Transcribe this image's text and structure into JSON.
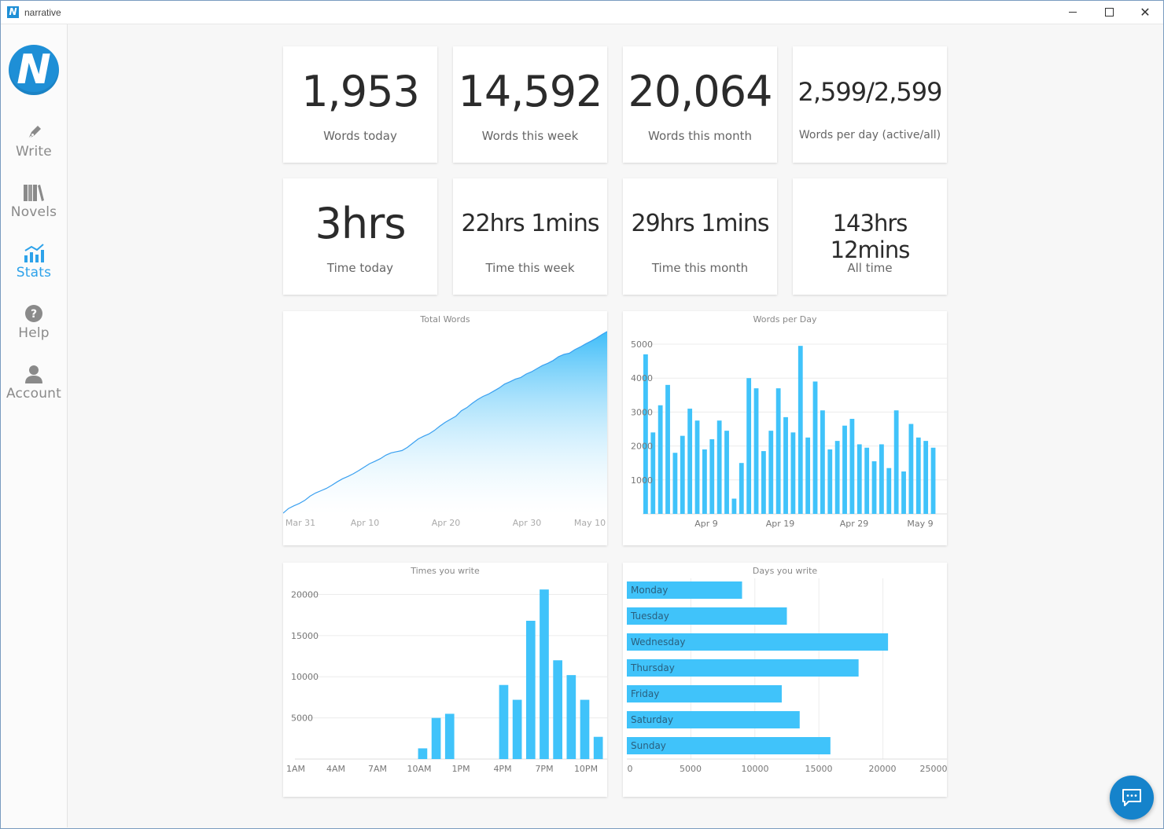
{
  "window": {
    "title": "narrative",
    "app_icon_letter": "N"
  },
  "sidebar": {
    "logo_letter": "N",
    "items": [
      {
        "label": "Write",
        "icon": "pen-icon",
        "active": false
      },
      {
        "label": "Novels",
        "icon": "books-icon",
        "active": false
      },
      {
        "label": "Stats",
        "icon": "chart-icon",
        "active": true
      },
      {
        "label": "Help",
        "icon": "help-icon",
        "active": false
      },
      {
        "label": "Account",
        "icon": "user-icon",
        "active": false
      }
    ]
  },
  "stats": {
    "words_today": {
      "value": "1,953",
      "label": "Words today"
    },
    "words_week": {
      "value": "14,592",
      "label": "Words this week"
    },
    "words_month": {
      "value": "20,064",
      "label": "Words this month"
    },
    "words_per_day": {
      "value": "2,599/2,599",
      "label": "Words per day (active/all)"
    },
    "time_today": {
      "value": "3hrs",
      "label": "Time today"
    },
    "time_week": {
      "value": "22hrs 1mins",
      "label": "Time this week"
    },
    "time_month": {
      "value": "29hrs 1mins",
      "label": "Time this month"
    },
    "time_all": {
      "value": "143hrs 12mins",
      "label": "All time"
    }
  },
  "colors": {
    "accent": "#2da2ea",
    "bar": "#40c3fa",
    "line": "#3aa0f0"
  },
  "chart_data": [
    {
      "id": "total_words",
      "type": "area",
      "title": "Total Words",
      "x_ticks": [
        "Mar 31",
        "Apr 10",
        "Apr 20",
        "Apr 30",
        "May 10"
      ],
      "values": [
        200,
        1400,
        2100,
        2700,
        3500,
        4600,
        5400,
        6000,
        6600,
        7400,
        8300,
        9100,
        9700,
        10400,
        11200,
        12100,
        13000,
        13600,
        14300,
        15200,
        15800,
        16100,
        16400,
        17200,
        18300,
        19400,
        20100,
        20700,
        21600,
        22700,
        23700,
        24500,
        25300,
        26700,
        27500,
        28600,
        29600,
        30400,
        31000,
        31800,
        32600,
        33600,
        34200,
        34900,
        35300,
        36200,
        36800,
        37600,
        38400,
        39000,
        39700,
        40700,
        41300,
        41600,
        42500,
        43200,
        44000,
        44700,
        45500,
        46400,
        47200
      ],
      "ylim": [
        0,
        48000
      ],
      "grid": false
    },
    {
      "id": "words_per_day",
      "type": "bar",
      "title": "Words per Day",
      "y_ticks": [
        "5000",
        "4000",
        "3000",
        "2000",
        "1000"
      ],
      "x_ticks": [
        "Apr 9",
        "Apr 19",
        "Apr 29",
        "May 9"
      ],
      "values": [
        4700,
        2400,
        3200,
        3800,
        1800,
        2300,
        3100,
        2750,
        1900,
        2200,
        2750,
        2450,
        450,
        1500,
        4000,
        3700,
        1850,
        2450,
        3700,
        2850,
        2400,
        4950,
        2250,
        3900,
        3050,
        1900,
        2150,
        2600,
        2800,
        2050,
        1950,
        1550,
        2050,
        1350,
        3050,
        1250,
        2650,
        2250,
        2150,
        1950
      ],
      "ylim": [
        0,
        5000
      ],
      "grid": true
    },
    {
      "id": "times_you_write",
      "type": "bar",
      "title": "Times you write",
      "y_ticks": [
        "20000",
        "15000",
        "10000",
        "5000"
      ],
      "x_ticks": [
        "1AM",
        "4AM",
        "7AM",
        "10AM",
        "1PM",
        "4PM",
        "7PM",
        "10PM"
      ],
      "categories": [
        "1AM",
        "2AM",
        "3AM",
        "4AM",
        "5AM",
        "6AM",
        "7AM",
        "8AM",
        "9AM",
        "10AM",
        "11AM",
        "12PM",
        "1PM",
        "2PM",
        "3PM",
        "4PM",
        "5PM",
        "6PM",
        "7PM",
        "8PM",
        "9PM",
        "10PM",
        "11PM"
      ],
      "values": [
        0,
        0,
        0,
        0,
        0,
        0,
        0,
        0,
        0,
        1300,
        5000,
        5500,
        0,
        0,
        0,
        9000,
        7200,
        16800,
        20600,
        12000,
        10200,
        7200,
        2700
      ],
      "ylim": [
        0,
        21000
      ],
      "grid": true
    },
    {
      "id": "days_you_write",
      "type": "bar",
      "orientation": "horizontal",
      "title": "Days you write",
      "categories": [
        "Monday",
        "Tuesday",
        "Wednesday",
        "Thursday",
        "Friday",
        "Saturday",
        "Sunday"
      ],
      "values": [
        9000,
        12500,
        20400,
        18100,
        12100,
        13500,
        15900
      ],
      "x_ticks": [
        "0",
        "5000",
        "10000",
        "15000",
        "20000",
        "25000"
      ],
      "xlim": [
        0,
        25000
      ],
      "grid": true
    }
  ]
}
